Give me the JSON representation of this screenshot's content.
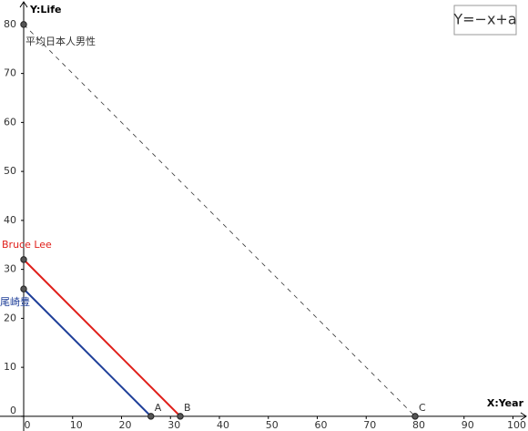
{
  "chart_data": {
    "type": "line",
    "xlabel": "X:Year",
    "ylabel": "Y:Life",
    "annotation": "Y=−x+a",
    "xlim": [
      -4.84,
      103.07
    ],
    "ylim": [
      -3,
      85
    ],
    "xticks": [
      0,
      10,
      20,
      30,
      40,
      50,
      60,
      70,
      80,
      90,
      100
    ],
    "yticks": [
      0,
      10,
      20,
      30,
      40,
      50,
      60,
      70,
      80
    ],
    "series": [
      {
        "name": "尾崎豊",
        "color": "#1f3f99",
        "x": [
          0,
          26
        ],
        "values": [
          26,
          0
        ],
        "end_label": "A",
        "dashed": false
      },
      {
        "name": "Bruce Lee",
        "color": "#e0201b",
        "x": [
          0,
          32
        ],
        "values": [
          32,
          0
        ],
        "end_label": "B",
        "dashed": false
      },
      {
        "name": "平均日本人男性",
        "color": "#333333",
        "x": [
          0,
          80
        ],
        "values": [
          80,
          0
        ],
        "end_label": "C",
        "dashed": true
      }
    ]
  }
}
